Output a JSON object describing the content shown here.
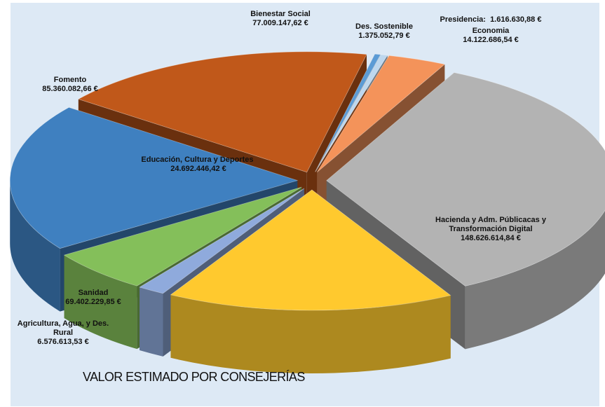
{
  "chart_data": {
    "type": "pie",
    "title": "VALOR ESTIMADO POR CONSEJERÍAS",
    "categories": [
      "Des. Sostenible",
      "Presidencia:",
      "Economia",
      "Hacienda y Adm. Públicacas y Transformación Digital",
      "Sanidad",
      "Agricultura, Agua, y Des. Rural",
      "Educación, Cultura y Deportes",
      "Fomento",
      "Bienestar Social"
    ],
    "values": [
      1375052.79,
      1616630.88,
      14122686.54,
      148626614.84,
      69402229.85,
      6576613.53,
      24692446.42,
      85360082.66,
      77009147.62
    ],
    "value_labels": [
      "1.375.052,79 €",
      "1.616.630,88 €",
      "14.122.686,54 €",
      "148.626.614,84 €",
      "69.402.229,85 €",
      "6.576.613,53 €",
      "24.692.446,42 €",
      "85.360.082,66 €",
      "77.009.147,62 €"
    ],
    "colors": [
      "#5b9bd5",
      "#bdd7ee",
      "#f4935a",
      "#b3b3b3",
      "#ffc92e",
      "#8faadc",
      "#84bf5a",
      "#3f80c0",
      "#c0581a"
    ]
  }
}
